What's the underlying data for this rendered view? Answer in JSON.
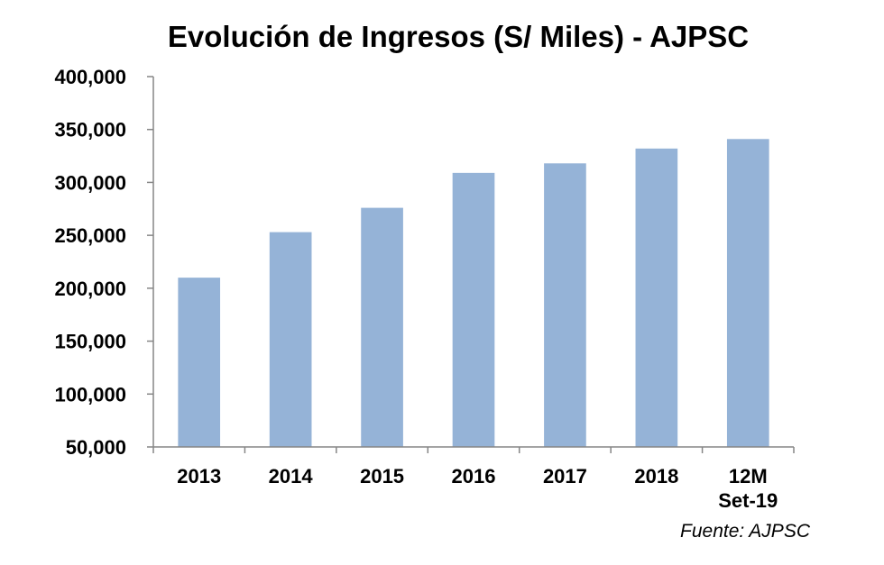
{
  "chart_data": {
    "type": "bar",
    "title": "Evolución de Ingresos (S/ Miles) - AJPSC",
    "categories": [
      "2013",
      "2014",
      "2015",
      "2016",
      "2017",
      "2018",
      "12M Set-19"
    ],
    "category_lines": [
      [
        "2013"
      ],
      [
        "2014"
      ],
      [
        "2015"
      ],
      [
        "2016"
      ],
      [
        "2017"
      ],
      [
        "2018"
      ],
      [
        "12M",
        "Set-19"
      ]
    ],
    "values": [
      210000,
      253000,
      276000,
      309000,
      318000,
      332000,
      341000
    ],
    "ylim": [
      50000,
      400000
    ],
    "yticks": [
      50000,
      100000,
      150000,
      200000,
      250000,
      300000,
      350000,
      400000
    ],
    "ytick_labels": [
      "50,000",
      "100,000",
      "150,000",
      "200,000",
      "250,000",
      "300,000",
      "350,000",
      "400,000"
    ],
    "xlabel": "",
    "ylabel": "",
    "grid": false,
    "legend": "none",
    "bar_color": "#95B3D7",
    "axis_color": "#868686"
  },
  "source_note": "Fuente: AJPSC"
}
